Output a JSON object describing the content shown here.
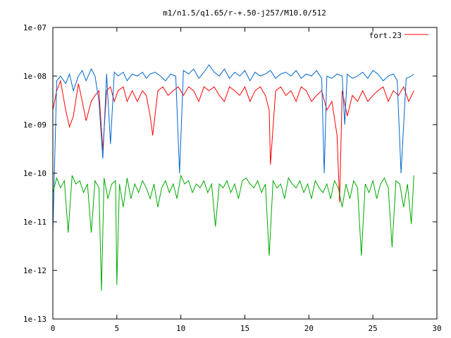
{
  "chart_data": {
    "type": "line",
    "title": "m1/n1.5/q1.65/r-+.50-j257/M10.0/512",
    "xlabel": "",
    "ylabel": "",
    "xlim": [
      0,
      30
    ],
    "ylim": [
      1e-13,
      1e-07
    ],
    "y_scale": "log",
    "x_ticks": [
      0,
      5,
      10,
      15,
      20,
      25,
      30
    ],
    "x_tick_labels": [
      "0",
      "5",
      "10",
      "15",
      "20",
      "25",
      "30"
    ],
    "y_ticks": [
      1e-13,
      1e-12,
      1e-11,
      1e-10,
      1e-09,
      1e-08,
      1e-07
    ],
    "y_tick_labels": [
      "1e-13",
      "1e-12",
      "1e-11",
      "1e-10",
      "1e-09",
      "1e-08",
      "1e-07"
    ],
    "grid": false,
    "legend": {
      "placement": "top-right",
      "entries": [
        "fort.23"
      ]
    },
    "series": [
      {
        "name": "fort.23",
        "color": "#ff0000",
        "x": [
          0.0,
          0.3,
          0.6,
          1.0,
          1.3,
          1.6,
          2.0,
          2.3,
          2.6,
          3.0,
          3.3,
          3.6,
          3.9,
          4.2,
          4.5,
          4.8,
          5.1,
          5.5,
          5.8,
          6.2,
          6.6,
          7.0,
          7.3,
          7.6,
          7.8,
          8.2,
          8.6,
          9.0,
          9.4,
          9.8,
          10.2,
          10.6,
          11.0,
          11.4,
          11.8,
          12.2,
          12.6,
          13.0,
          13.4,
          13.8,
          14.2,
          14.6,
          15.0,
          15.4,
          15.8,
          16.2,
          16.6,
          16.9,
          17.0,
          17.4,
          17.8,
          18.2,
          18.6,
          19.0,
          19.4,
          19.8,
          20.2,
          20.6,
          21.0,
          21.4,
          21.8,
          22.2,
          22.4,
          22.6,
          23.0,
          23.4,
          23.8,
          24.2,
          24.6,
          25.0,
          25.4,
          25.8,
          26.2,
          26.6,
          27.0,
          27.4,
          27.8,
          28.2
        ],
        "y": [
          2e-09,
          5e-09,
          8e-09,
          2e-09,
          9e-10,
          1.5e-09,
          7e-09,
          3e-09,
          1.2e-09,
          3e-09,
          4e-09,
          5e-09,
          3e-10,
          5e-09,
          6e-09,
          3e-09,
          5e-09,
          6e-09,
          3e-09,
          5e-09,
          3e-09,
          5e-09,
          4e-09,
          1.5e-09,
          6e-10,
          5e-09,
          6e-09,
          4e-09,
          5e-09,
          6e-09,
          4e-09,
          6e-09,
          5e-09,
          3e-09,
          6e-09,
          5e-09,
          6e-09,
          4e-09,
          3e-09,
          6e-09,
          5e-09,
          4e-09,
          6e-09,
          3e-09,
          5e-09,
          6e-09,
          4e-09,
          2e-09,
          1.5e-10,
          5e-09,
          6e-09,
          4e-09,
          5e-09,
          3e-09,
          6e-09,
          5e-09,
          3e-09,
          4e-09,
          5e-09,
          2e-09,
          3e-09,
          6e-10,
          2.5e-11,
          5e-09,
          1.5e-09,
          4e-09,
          3e-09,
          5e-09,
          3e-09,
          4e-09,
          5e-09,
          6e-09,
          3e-09,
          5e-09,
          4e-09,
          6e-09,
          3e-09,
          5e-09
        ]
      },
      {
        "name": "",
        "color": "#0066cc",
        "x": [
          0.0,
          0.3,
          0.6,
          1.0,
          1.3,
          1.6,
          2.0,
          2.3,
          2.6,
          3.0,
          3.3,
          3.6,
          3.9,
          4.2,
          4.5,
          4.8,
          5.1,
          5.5,
          5.8,
          6.2,
          6.6,
          7.0,
          7.3,
          7.6,
          8.0,
          8.4,
          8.8,
          9.2,
          9.6,
          9.9,
          10.2,
          10.6,
          11.0,
          11.4,
          11.8,
          12.2,
          12.6,
          13.0,
          13.4,
          13.8,
          14.2,
          14.6,
          15.0,
          15.4,
          15.8,
          16.2,
          16.6,
          17.0,
          17.4,
          17.8,
          18.2,
          18.6,
          19.0,
          19.4,
          19.8,
          20.2,
          20.6,
          21.0,
          21.2,
          21.4,
          21.8,
          22.2,
          22.6,
          22.8,
          23.0,
          23.4,
          23.8,
          24.2,
          24.6,
          25.0,
          25.4,
          25.8,
          26.2,
          26.6,
          26.9,
          27.2,
          27.6,
          28.0,
          28.2
        ],
        "y": [
          6e-12,
          8e-09,
          1e-08,
          7e-09,
          1.1e-08,
          5e-09,
          1e-08,
          1.3e-08,
          8e-09,
          1.4e-08,
          1e-08,
          3e-09,
          2e-10,
          1.1e-08,
          4e-10,
          1.2e-08,
          1e-08,
          1.2e-08,
          8e-09,
          1.1e-08,
          1e-08,
          1.2e-08,
          9e-09,
          1.1e-08,
          1.2e-08,
          1e-08,
          8e-09,
          1.1e-08,
          1e-08,
          1e-10,
          1.3e-08,
          1.1e-08,
          1.4e-08,
          9e-09,
          1.2e-08,
          1.7e-08,
          1.2e-08,
          1e-08,
          1.4e-08,
          9e-09,
          1.2e-08,
          1e-08,
          1.3e-08,
          8e-09,
          1.2e-08,
          1e-08,
          1.1e-08,
          1.3e-08,
          9e-09,
          1.1e-08,
          1.2e-08,
          1e-08,
          1.3e-08,
          9e-09,
          1.1e-08,
          1e-08,
          1.3e-08,
          9e-09,
          1e-10,
          1e-08,
          9e-09,
          1.1e-08,
          1e-08,
          1e-09,
          1.1e-08,
          9e-09,
          1e-08,
          1.2e-08,
          9e-09,
          1.3e-08,
          1.1e-08,
          8e-09,
          1e-08,
          1.1e-08,
          8e-09,
          1e-10,
          9e-09,
          1e-08,
          1.1e-08
        ]
      },
      {
        "name": "",
        "color": "#00aa00",
        "x": [
          0.0,
          0.3,
          0.6,
          0.9,
          1.2,
          1.5,
          1.8,
          2.1,
          2.4,
          2.7,
          3.0,
          3.3,
          3.6,
          3.8,
          4.0,
          4.3,
          4.6,
          4.9,
          5.0,
          5.2,
          5.5,
          5.8,
          6.1,
          6.4,
          6.7,
          7.0,
          7.3,
          7.6,
          7.9,
          8.2,
          8.5,
          8.8,
          9.1,
          9.4,
          9.7,
          10.0,
          10.3,
          10.6,
          10.9,
          11.2,
          11.5,
          11.8,
          12.1,
          12.4,
          12.7,
          13.0,
          13.3,
          13.6,
          13.9,
          14.2,
          14.5,
          14.8,
          15.1,
          15.4,
          15.7,
          16.0,
          16.3,
          16.6,
          16.9,
          17.2,
          17.5,
          17.8,
          18.1,
          18.4,
          18.7,
          19.0,
          19.3,
          19.6,
          19.9,
          20.2,
          20.5,
          20.8,
          21.1,
          21.4,
          21.7,
          22.0,
          22.3,
          22.6,
          22.9,
          23.2,
          23.5,
          23.8,
          24.1,
          24.4,
          24.7,
          25.0,
          25.3,
          25.6,
          25.9,
          26.2,
          26.5,
          26.8,
          27.1,
          27.4,
          27.7,
          28.0,
          28.2
        ],
        "y": [
          4e-11,
          8e-11,
          5e-11,
          7e-11,
          6e-12,
          9e-11,
          6e-11,
          7e-11,
          4e-11,
          6e-11,
          6e-12,
          7e-11,
          5e-11,
          3.8e-13,
          8e-11,
          3e-11,
          6e-11,
          7e-11,
          5e-13,
          6e-11,
          2e-11,
          8e-11,
          3e-11,
          6e-11,
          4e-11,
          7e-11,
          5e-11,
          3e-11,
          6e-11,
          2e-11,
          5e-11,
          7e-11,
          4e-11,
          6e-11,
          3e-11,
          9e-11,
          6e-11,
          7e-11,
          4e-11,
          6e-11,
          5e-11,
          7e-11,
          4e-11,
          6e-11,
          8e-12,
          6e-11,
          5e-11,
          7e-11,
          4e-11,
          6e-11,
          3e-11,
          7e-11,
          8e-11,
          6e-11,
          5e-11,
          7e-11,
          4e-11,
          6e-11,
          2e-12,
          7e-11,
          5e-11,
          6e-11,
          3e-11,
          8e-11,
          6e-11,
          5e-11,
          7e-11,
          4e-11,
          6e-11,
          3e-11,
          7e-11,
          5e-11,
          4e-11,
          6e-11,
          3e-11,
          7e-11,
          5e-11,
          2e-11,
          6e-11,
          3e-11,
          7e-11,
          5e-11,
          2e-12,
          6e-11,
          4e-11,
          7e-11,
          3e-11,
          6e-11,
          8e-11,
          5e-11,
          3e-12,
          7e-11,
          6e-11,
          2e-11,
          6e-11,
          9e-12,
          9e-11
        ]
      }
    ]
  }
}
